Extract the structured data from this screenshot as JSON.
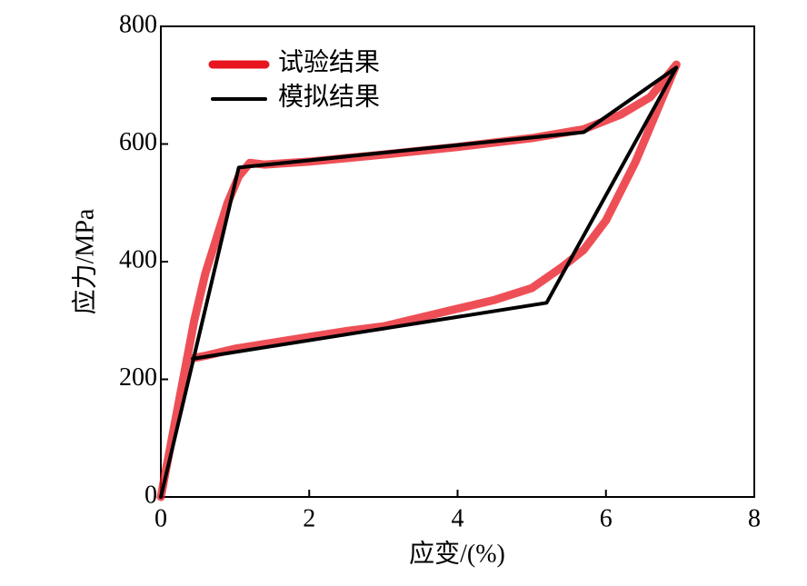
{
  "chart_data": {
    "type": "line",
    "xlabel": "应变/(%)",
    "ylabel": "应力/MPa",
    "xlim": [
      0,
      8
    ],
    "xticks": [
      0,
      2,
      4,
      6,
      8
    ],
    "ylim": [
      0,
      800
    ],
    "yticks": [
      0,
      200,
      400,
      600,
      800
    ],
    "grid": false,
    "legend": "upper left",
    "series": [
      {
        "name": "试验结果",
        "color": "#e8141e",
        "x": [
          0,
          0.15,
          0.3,
          0.45,
          0.6,
          0.75,
          0.9,
          1.05,
          1.2,
          1.4,
          2,
          3,
          4,
          5,
          5.7,
          6.2,
          6.6,
          6.95,
          6.8,
          6.6,
          6.4,
          6.2,
          6.0,
          5.7,
          5.4,
          5.0,
          4.5,
          4.0,
          3.5,
          3.0,
          2.5,
          2.0,
          1.5,
          1.0,
          0.6,
          0.4
        ],
        "values": [
          0,
          100,
          200,
          300,
          380,
          440,
          500,
          545,
          568,
          565,
          570,
          582,
          595,
          610,
          625,
          650,
          680,
          735,
          690,
          630,
          570,
          520,
          470,
          420,
          390,
          355,
          335,
          320,
          305,
          290,
          282,
          272,
          262,
          252,
          240,
          235
        ]
      },
      {
        "name": "模拟结果",
        "color": "#000000",
        "x": [
          0,
          1.05,
          5.7,
          6.95,
          5.2,
          0.43
        ],
        "values": [
          0,
          560,
          620,
          730,
          330,
          235
        ]
      }
    ]
  }
}
